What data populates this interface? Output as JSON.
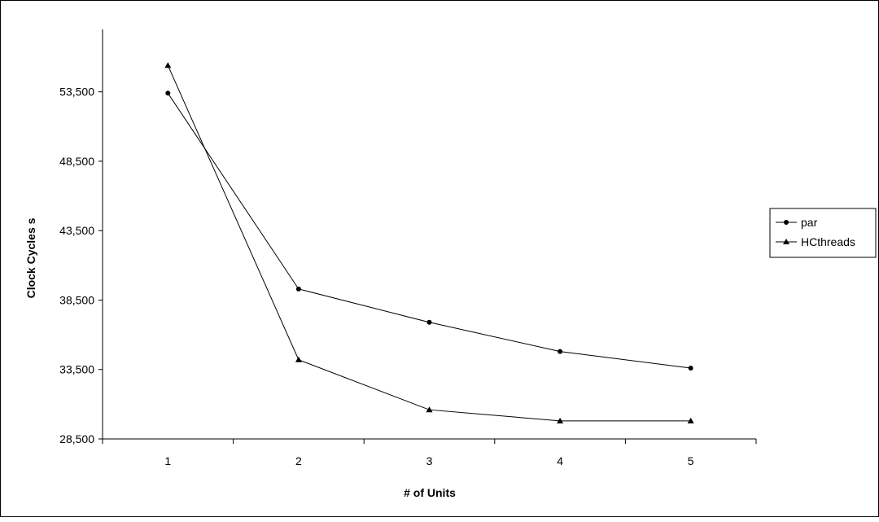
{
  "chart_data": {
    "type": "line",
    "title": "",
    "xlabel": "# of Units",
    "ylabel": "Clock Cycles s",
    "categories": [
      "1",
      "2",
      "3",
      "4",
      "5"
    ],
    "y_ticks": [
      "28,500",
      "33,500",
      "38,500",
      "43,500",
      "48,500",
      "53,500"
    ],
    "ylim": [
      28500,
      58000
    ],
    "grid": false,
    "legend_position": "right",
    "series": [
      {
        "name": "par",
        "marker": "circle",
        "color": "#000000",
        "values": [
          53400,
          39300,
          36900,
          34800,
          33600
        ]
      },
      {
        "name": "HCthreads",
        "marker": "triangle",
        "color": "#000000",
        "values": [
          55400,
          34200,
          30600,
          29800,
          29800
        ]
      }
    ]
  }
}
